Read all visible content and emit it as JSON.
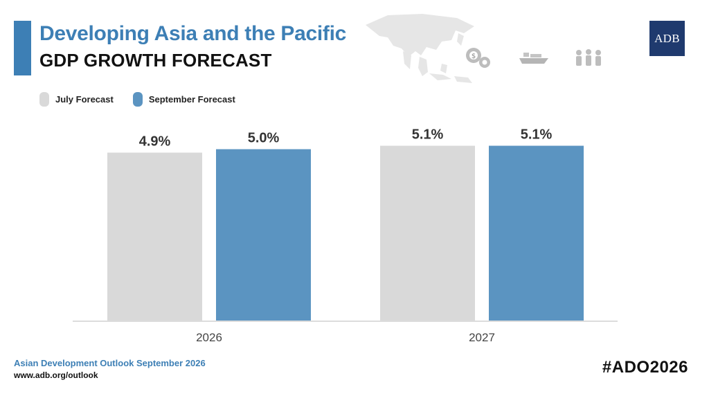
{
  "header": {
    "title": "Developing Asia and the Pacific",
    "subtitle": "GDP GROWTH FORECAST",
    "logo_text": "ADB"
  },
  "icons": [
    "asia-pacific-map-icon",
    "gears-dollar-icon",
    "cargo-ship-icon",
    "people-group-icon"
  ],
  "footer": {
    "publication": "Asian Development Outlook September 2026",
    "url": "www.adb.org/outlook",
    "hashtag": "#ADO2026"
  },
  "colors": {
    "accent": "#3d7fb5",
    "july": "#d9d9d9",
    "september": "#5b94c1",
    "logo": "#1f3a6e"
  },
  "chart_data": {
    "type": "bar",
    "categories": [
      "2026",
      "2027"
    ],
    "series": [
      {
        "name": "July Forecast",
        "values": [
          4.9,
          5.1
        ],
        "labels": [
          "4.9%",
          "5.1%"
        ],
        "color": "#d9d9d9"
      },
      {
        "name": "September Forecast",
        "values": [
          5.0,
          5.1
        ],
        "labels": [
          "5.0%",
          "5.1%"
        ],
        "color": "#5b94c1"
      }
    ],
    "legend_position": "top-left",
    "grid": false
  }
}
